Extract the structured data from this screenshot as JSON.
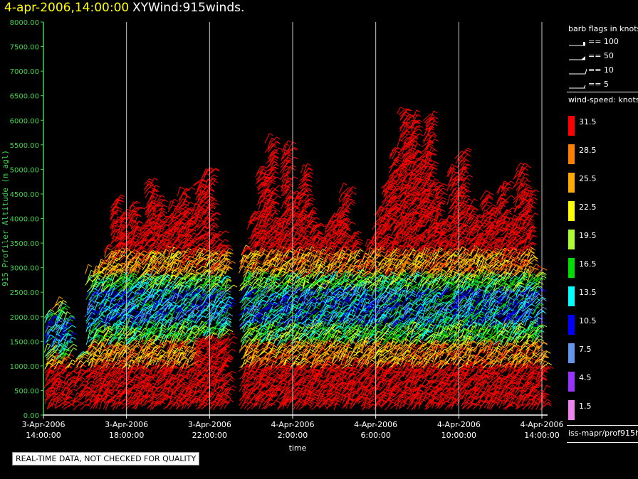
{
  "header": {
    "time": "4-apr-2006,14:00:00",
    "product": "XYWind:915winds."
  },
  "banner": "REAL-TIME DATA, NOT CHECKED FOR QUALITY",
  "legend": {
    "barb_title": "barb flags in knots",
    "barbs": [
      {
        "label": "== 100",
        "icon": "barb-100-icon"
      },
      {
        "label": "== 50",
        "icon": "barb-50-icon"
      },
      {
        "label": "== 10",
        "icon": "barb-10-icon"
      },
      {
        "label": "== 5",
        "icon": "barb-5-icon"
      }
    ],
    "speed_title": "wind-speed: knots",
    "speed_bins": [
      {
        "label": "31.5",
        "color": "#ff0000"
      },
      {
        "label": "28.5",
        "color": "#ff7f00"
      },
      {
        "label": "25.5",
        "color": "#ffaa00"
      },
      {
        "label": "22.5",
        "color": "#ffff00"
      },
      {
        "label": "19.5",
        "color": "#aaff33"
      },
      {
        "label": "16.5",
        "color": "#00dd00"
      },
      {
        "label": "13.5",
        "color": "#00ffff"
      },
      {
        "label": "10.5",
        "color": "#0000ff"
      },
      {
        "label": "7.5",
        "color": "#6495ed"
      },
      {
        "label": "4.5",
        "color": "#9933ff"
      },
      {
        "label": "1.5",
        "color": "#ee82ee"
      }
    ],
    "source": "iss-mapr/prof915h"
  },
  "chart_data": {
    "type": "scatter",
    "title": "XYWind:915winds.",
    "xlabel": "time",
    "ylabel": "915 Profiler Altitude (m agl)",
    "ylim": [
      0,
      8000
    ],
    "yticks": [
      "0.00",
      "500.00",
      "1000.00",
      "1500.00",
      "2000.00",
      "2500.00",
      "3000.00",
      "3500.00",
      "4000.00",
      "4500.00",
      "5000.00",
      "5500.00",
      "6000.00",
      "6500.00",
      "7000.00",
      "7500.00",
      "8000.00"
    ],
    "xticks": [
      {
        "date": "3-Apr-2006",
        "time": "14:00:00"
      },
      {
        "date": "3-Apr-2006",
        "time": "18:00:00"
      },
      {
        "date": "3-Apr-2006",
        "time": "22:00:00"
      },
      {
        "date": "4-Apr-2006",
        "time": "2:00:00"
      },
      {
        "date": "4-Apr-2006",
        "time": "6:00:00"
      },
      {
        "date": "4-Apr-2006",
        "time": "10:00:00"
      },
      {
        "date": "4-Apr-2006",
        "time": "14:00:00"
      }
    ],
    "xlim_hours": [
      0,
      24
    ],
    "grid": "vertical",
    "series_note_units": "knots",
    "columns": [
      {
        "t": 0.2,
        "top": 2000
      },
      {
        "t": 0.6,
        "top": 2200
      },
      {
        "t": 1.0,
        "top": 1900
      },
      {
        "t": 1.6,
        "top": 1200
      },
      {
        "t": 2.2,
        "top": 2900
      },
      {
        "t": 2.6,
        "top": 3000
      },
      {
        "t": 3.0,
        "top": 3300
      },
      {
        "t": 3.4,
        "top": 4300
      },
      {
        "t": 3.8,
        "top": 4000
      },
      {
        "t": 4.2,
        "top": 4200
      },
      {
        "t": 4.6,
        "top": 3800
      },
      {
        "t": 5.0,
        "top": 4700
      },
      {
        "t": 5.4,
        "top": 4300
      },
      {
        "t": 5.8,
        "top": 3900
      },
      {
        "t": 6.2,
        "top": 4200
      },
      {
        "t": 6.6,
        "top": 4500
      },
      {
        "t": 7.0,
        "top": 4100
      },
      {
        "t": 7.4,
        "top": 4700
      },
      {
        "t": 7.8,
        "top": 4900
      },
      {
        "t": 8.2,
        "top": 3600
      },
      {
        "t": 8.6,
        "top": 3300
      },
      {
        "t": 9.6,
        "top": 3300
      },
      {
        "t": 10.0,
        "top": 4000
      },
      {
        "t": 10.4,
        "top": 4900
      },
      {
        "t": 10.8,
        "top": 5500
      },
      {
        "t": 11.2,
        "top": 3900
      },
      {
        "t": 11.6,
        "top": 5400
      },
      {
        "t": 12.0,
        "top": 4400
      },
      {
        "t": 12.4,
        "top": 4900
      },
      {
        "t": 12.8,
        "top": 4000
      },
      {
        "t": 13.2,
        "top": 3600
      },
      {
        "t": 13.6,
        "top": 3900
      },
      {
        "t": 14.0,
        "top": 4000
      },
      {
        "t": 14.4,
        "top": 4500
      },
      {
        "t": 14.8,
        "top": 3600
      },
      {
        "t": 15.2,
        "top": 3100
      },
      {
        "t": 15.6,
        "top": 3500
      },
      {
        "t": 16.0,
        "top": 4100
      },
      {
        "t": 16.4,
        "top": 4700
      },
      {
        "t": 16.8,
        "top": 5300
      },
      {
        "t": 17.2,
        "top": 6100
      },
      {
        "t": 17.6,
        "top": 6000
      },
      {
        "t": 18.0,
        "top": 5200
      },
      {
        "t": 18.4,
        "top": 6000
      },
      {
        "t": 18.8,
        "top": 4600
      },
      {
        "t": 19.2,
        "top": 3900
      },
      {
        "t": 19.6,
        "top": 4900
      },
      {
        "t": 20.0,
        "top": 5300
      },
      {
        "t": 20.4,
        "top": 4200
      },
      {
        "t": 20.8,
        "top": 3900
      },
      {
        "t": 21.2,
        "top": 4400
      },
      {
        "t": 21.6,
        "top": 4100
      },
      {
        "t": 22.0,
        "top": 4600
      },
      {
        "t": 22.4,
        "top": 3900
      },
      {
        "t": 22.8,
        "top": 5000
      },
      {
        "t": 23.2,
        "top": 4500
      },
      {
        "t": 23.6,
        "top": 2900
      },
      {
        "t": 24.0,
        "top": 1200
      }
    ]
  }
}
